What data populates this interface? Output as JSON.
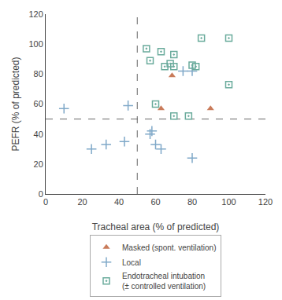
{
  "chart_data": {
    "type": "scatter",
    "xlabel": "Tracheal area (% of predicted)",
    "ylabel": "PEFR (% of predicted)",
    "xlim": [
      0,
      120
    ],
    "ylim": [
      0,
      120
    ],
    "xticks": [
      0,
      20,
      40,
      60,
      80,
      100,
      120
    ],
    "yticks": [
      0,
      20,
      40,
      60,
      80,
      100,
      120
    ],
    "grid": false,
    "legend": "bottom",
    "series": [
      {
        "name": "Masked (spont. ventilation)",
        "color": "#c97b5a",
        "marker": "triangle",
        "x": [
          63,
          69,
          90
        ],
        "y": [
          57,
          79,
          57
        ]
      },
      {
        "name": "Local",
        "color": "#7fa8c8",
        "marker": "plus",
        "x": [
          10,
          25,
          33,
          45,
          43,
          57,
          58,
          60,
          63,
          75,
          80,
          80
        ],
        "y": [
          57,
          30,
          33,
          59,
          35,
          40,
          42,
          33,
          30,
          82,
          82,
          24
        ]
      },
      {
        "name": "Endotracheal intubation\n(± controlled ventilation)",
        "color": "#6aab9c",
        "marker": "square_dot",
        "x": [
          55,
          57,
          60,
          63,
          65,
          68,
          70,
          70,
          80,
          82,
          70,
          78,
          100,
          85,
          100
        ],
        "y": [
          97,
          89,
          60,
          95,
          85,
          87,
          93,
          85,
          86,
          85,
          52,
          52,
          73,
          104,
          104
        ]
      }
    ],
    "reference_lines": [
      {
        "axis": "y",
        "value": 50,
        "color": "#666666",
        "line_style": "dashed"
      },
      {
        "axis": "x",
        "value": 50,
        "color": "#666666",
        "line_style": "dashed"
      }
    ]
  }
}
